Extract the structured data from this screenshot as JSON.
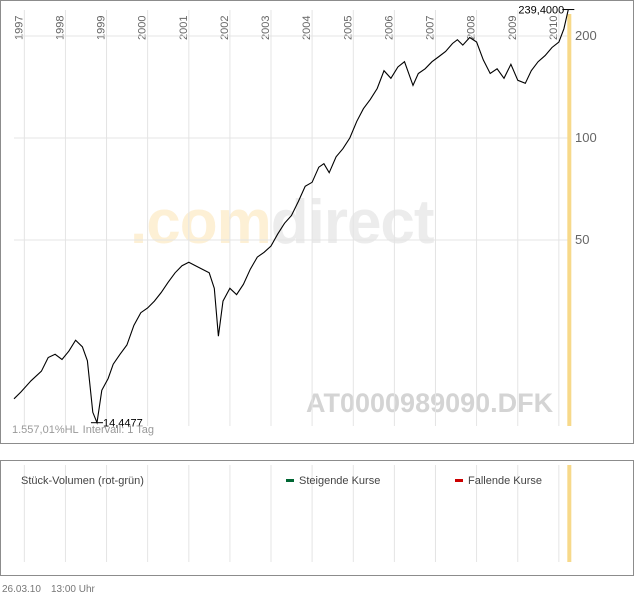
{
  "chart_data": {
    "type": "line",
    "title": "",
    "xlabel": "",
    "ylabel": "",
    "y_scale": "log",
    "ylim": [
      12,
      230
    ],
    "xlim": [
      "1996-10-01",
      "2010-04-10"
    ],
    "x_tick_labels": [
      "1997",
      "1998",
      "1999",
      "2000",
      "2001",
      "2002",
      "2003",
      "2004",
      "2005",
      "2006",
      "2007",
      "2008",
      "2009",
      "2010"
    ],
    "y_tick_labels": [
      200,
      100,
      50
    ],
    "grid": true,
    "series": [
      {
        "x": [
          "1996-10-01",
          "1996-12-01",
          "1997-03-01",
          "1997-06-01",
          "1997-08-01",
          "1997-10-01",
          "1997-12-01",
          "1998-02-01",
          "1998-04-01",
          "1998-06-01",
          "1998-07-15",
          "1998-09-01",
          "1998-10-08",
          "1998-11-20",
          "1999-01-15",
          "1999-03-01",
          "1999-05-01",
          "1999-07-01",
          "1999-09-01",
          "1999-11-01",
          "2000-01-01",
          "2000-03-01",
          "2000-05-01",
          "2000-07-01",
          "2000-09-01",
          "2000-11-01",
          "2001-01-01",
          "2001-03-01",
          "2001-05-01",
          "2001-07-01",
          "2001-08-15",
          "2001-09-21",
          "2001-11-01",
          "2002-01-01",
          "2002-03-01",
          "2002-05-01",
          "2002-07-01",
          "2002-09-01",
          "2002-11-01",
          "2003-01-01",
          "2003-03-01",
          "2003-05-01",
          "2003-07-01",
          "2003-09-01",
          "2003-11-01",
          "2004-01-01",
          "2004-03-01",
          "2004-04-15",
          "2004-06-01",
          "2004-08-01",
          "2004-10-01",
          "2004-12-01",
          "2005-02-01",
          "2005-04-01",
          "2005-06-01",
          "2005-08-01",
          "2005-10-01",
          "2005-12-01",
          "2006-02-01",
          "2006-04-01",
          "2006-06-15",
          "2006-08-01",
          "2006-10-01",
          "2006-12-01",
          "2007-02-01",
          "2007-04-01",
          "2007-06-01",
          "2007-07-15",
          "2007-09-01",
          "2007-11-01",
          "2008-01-01",
          "2008-03-01",
          "2008-05-01",
          "2008-07-01",
          "2008-09-01",
          "2008-11-01",
          "2009-01-01",
          "2009-03-09",
          "2009-05-01",
          "2009-07-01",
          "2009-09-01",
          "2009-11-01",
          "2010-01-01",
          "2010-02-15",
          "2010-03-26"
        ],
        "values": [
          17,
          17.8,
          19.2,
          20.5,
          22.5,
          23,
          22.2,
          23.5,
          25.3,
          24.2,
          22,
          15.5,
          14.4477,
          18,
          19.5,
          21.5,
          23,
          24.5,
          28,
          30.5,
          31.5,
          33,
          35,
          37.5,
          40,
          42,
          43,
          42,
          41,
          40,
          36,
          26,
          33,
          36,
          34.5,
          37,
          41,
          44.5,
          46,
          48,
          52,
          56,
          59,
          65,
          72,
          74,
          82,
          84,
          79,
          88,
          93,
          100,
          112,
          122,
          130,
          140,
          158,
          150,
          162,
          168,
          143,
          155,
          160,
          168,
          174,
          180,
          190,
          195,
          188,
          198,
          192,
          170,
          155,
          160,
          150,
          165,
          148,
          145,
          158,
          168,
          175,
          185,
          192,
          210,
          239.4
        ]
      }
    ],
    "annotations": [
      {
        "label": "239,4000",
        "type": "max",
        "value": 239.4
      },
      {
        "label": "14,4477",
        "type": "min",
        "value": 14.4477
      }
    ]
  },
  "watermark": {
    "brand_a": ".com",
    "brand_b": "direct",
    "isin": "AT0000989090.DFK"
  },
  "footer_stats": {
    "perf": "1.557,01%HL",
    "interval": "Intervall: 1 Tag"
  },
  "volume_panel": {
    "title": "Stück-Volumen (rot-grün)",
    "legend_up": "Steigende Kurse",
    "legend_down": "Fallende Kurse"
  },
  "colors": {
    "line": "#000000",
    "grid": "#e4e4e4",
    "highlight_bar": "#f7d98a",
    "up": "#006633",
    "down": "#cc0000",
    "watermark_brand_a": "#fdf0d5",
    "watermark_brand_b": "#ececec",
    "watermark_isin": "#d4d4d4"
  },
  "timestamp": {
    "date": "26.03.10",
    "time": "13:00 Uhr"
  }
}
